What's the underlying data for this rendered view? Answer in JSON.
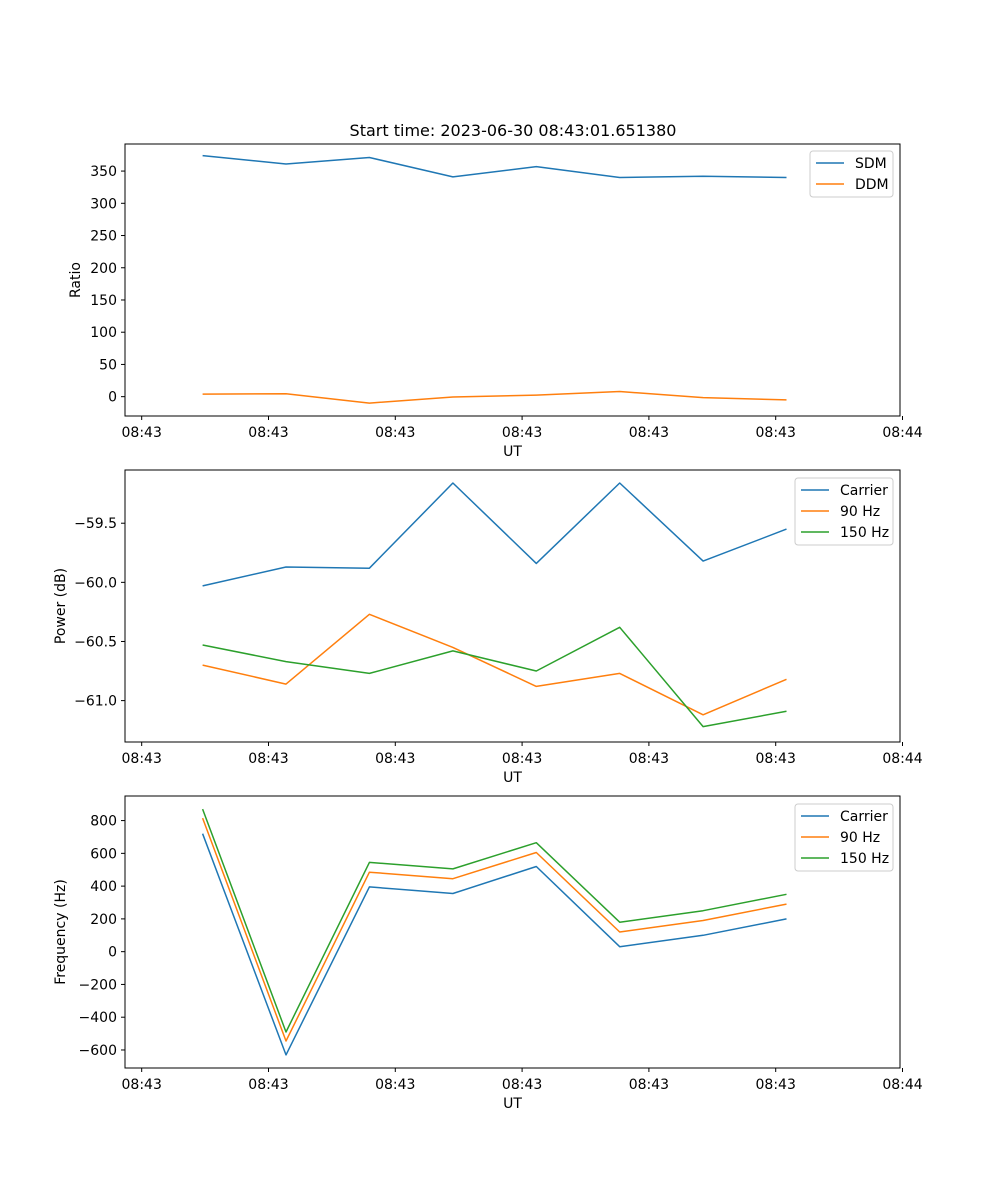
{
  "chart_data": [
    {
      "type": "line",
      "title": "Start time: 2023-06-30 08:43:01.651380",
      "xlabel": "UT",
      "ylabel": "Ratio",
      "x_tick_labels": [
        "08:43",
        "08:43",
        "08:43",
        "08:43",
        "08:43",
        "08:43",
        "08:44"
      ],
      "y_ticks": [
        0,
        50,
        100,
        150,
        200,
        250,
        300,
        350
      ],
      "y_tick_labels": [
        "0",
        "50",
        "100",
        "150",
        "200",
        "250",
        "300",
        "350"
      ],
      "ylim": [
        -30,
        392
      ],
      "x": [
        1,
        2,
        3,
        4,
        5,
        6,
        7,
        8
      ],
      "xlim": [
        0.07,
        9.36
      ],
      "x_tick_positions": [
        0.27,
        1.79,
        3.31,
        4.83,
        6.35,
        7.87,
        9.39
      ],
      "legend": "top-right",
      "series": [
        {
          "name": "SDM",
          "color": "#1f77b4",
          "values": [
            374,
            361,
            371,
            341,
            357,
            340,
            342,
            340
          ]
        },
        {
          "name": "DDM",
          "color": "#ff7f0e",
          "values": [
            4,
            4.5,
            -10,
            -0.5,
            2.5,
            8,
            -1.5,
            -5
          ]
        }
      ]
    },
    {
      "type": "line",
      "title": "",
      "xlabel": "UT",
      "ylabel": "Power (dB)",
      "x_tick_labels": [
        "08:43",
        "08:43",
        "08:43",
        "08:43",
        "08:43",
        "08:43",
        "08:44"
      ],
      "y_ticks": [
        -61.0,
        -60.5,
        -60.0,
        -59.5
      ],
      "y_tick_labels": [
        "−61.0",
        "−60.5",
        "−60.0",
        "−59.5"
      ],
      "ylim": [
        -61.35,
        -59.05
      ],
      "x": [
        1,
        2,
        3,
        4,
        5,
        6,
        7,
        8
      ],
      "xlim": [
        0.07,
        9.36
      ],
      "x_tick_positions": [
        0.27,
        1.79,
        3.31,
        4.83,
        6.35,
        7.87,
        9.39
      ],
      "legend": "top-right",
      "series": [
        {
          "name": "Carrier",
          "color": "#1f77b4",
          "values": [
            -60.03,
            -59.87,
            -59.88,
            -59.16,
            -59.84,
            -59.16,
            -59.82,
            -59.55
          ]
        },
        {
          "name": "90 Hz",
          "color": "#ff7f0e",
          "values": [
            -60.7,
            -60.86,
            -60.27,
            -60.55,
            -60.88,
            -60.77,
            -61.12,
            -60.82
          ]
        },
        {
          "name": "150 Hz",
          "color": "#2ca02c",
          "values": [
            -60.53,
            -60.67,
            -60.77,
            -60.58,
            -60.75,
            -60.38,
            -61.22,
            -61.09
          ]
        }
      ]
    },
    {
      "type": "line",
      "title": "",
      "xlabel": "UT",
      "ylabel": "Frequency (Hz)",
      "x_tick_labels": [
        "08:43",
        "08:43",
        "08:43",
        "08:43",
        "08:43",
        "08:43",
        "08:44"
      ],
      "y_ticks": [
        -600,
        -400,
        -200,
        0,
        200,
        400,
        600,
        800
      ],
      "y_tick_labels": [
        "−600",
        "−400",
        "−200",
        "0",
        "200",
        "400",
        "600",
        "800"
      ],
      "ylim": [
        -710,
        950
      ],
      "x": [
        1,
        2,
        3,
        4,
        5,
        6,
        7,
        8
      ],
      "xlim": [
        0.07,
        9.36
      ],
      "x_tick_positions": [
        0.27,
        1.79,
        3.31,
        4.83,
        6.35,
        7.87,
        9.39
      ],
      "legend": "top-right",
      "series": [
        {
          "name": "Carrier",
          "color": "#1f77b4",
          "values": [
            720,
            -630,
            395,
            355,
            520,
            30,
            100,
            200
          ]
        },
        {
          "name": "90 Hz",
          "color": "#ff7f0e",
          "values": [
            815,
            -545,
            485,
            445,
            605,
            120,
            190,
            290
          ]
        },
        {
          "name": "150 Hz",
          "color": "#2ca02c",
          "values": [
            870,
            -490,
            545,
            505,
            665,
            180,
            250,
            350
          ]
        }
      ]
    }
  ]
}
